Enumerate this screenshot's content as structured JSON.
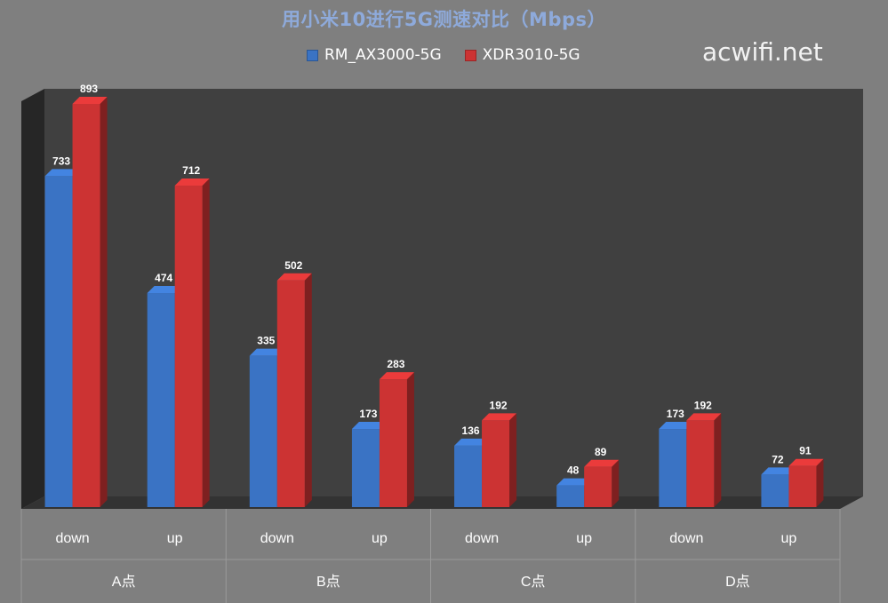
{
  "title": "用小米10进行5G测速对比（Mbps）",
  "watermark": "acwifi.net",
  "colors": {
    "background": "#7f7f7f",
    "plot_back": "#404040",
    "plot_side": "#262626",
    "floor": "#333333",
    "title": "#8eaadb",
    "label": "#ffffff"
  },
  "chart_data": {
    "type": "bar",
    "title": "用小米10进行5G测速对比（Mbps）",
    "xlabel": "",
    "ylabel": "",
    "ylim": [
      0,
      893
    ],
    "grid": false,
    "legend_position": "top",
    "categories": [
      "down",
      "up",
      "down",
      "up",
      "down",
      "up",
      "down",
      "up"
    ],
    "groups": [
      "A点",
      "B点",
      "C点",
      "D点"
    ],
    "series": [
      {
        "name": "RM_AX3000-5G",
        "color": "#3a73c4",
        "values": [
          733,
          474,
          335,
          173,
          136,
          48,
          173,
          72
        ]
      },
      {
        "name": "XDR3010-5G",
        "color": "#cc3333",
        "values": [
          893,
          712,
          502,
          283,
          192,
          89,
          192,
          91
        ]
      }
    ]
  }
}
